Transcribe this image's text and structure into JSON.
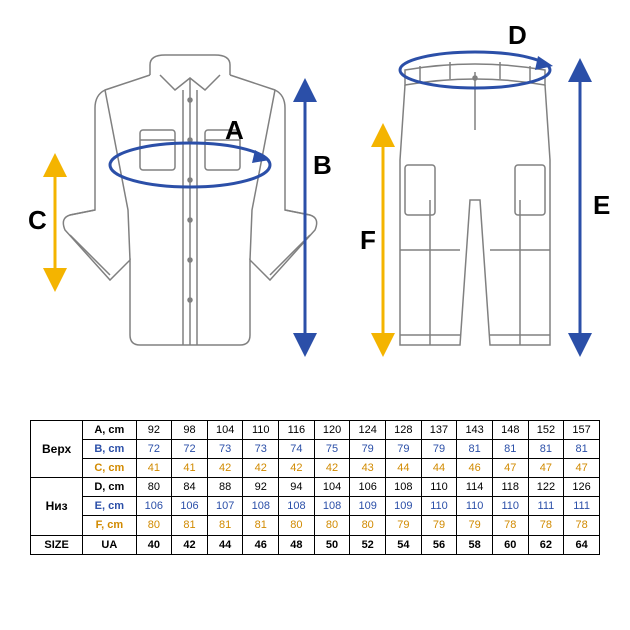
{
  "colors": {
    "garment_stroke": "#808080",
    "arrow_blue": "#2b4fa8",
    "arrow_yellow": "#f4b400",
    "label_text": "#000000",
    "table_border": "#000000",
    "row_a": "#000000",
    "row_b_text": "#2b4fa8",
    "row_c_text": "#d18a00",
    "row_d": "#000000",
    "row_e_text": "#2b4fa8",
    "row_f_text": "#d18a00",
    "size_ua": "#000000"
  },
  "labels": {
    "A": "A",
    "B": "B",
    "C": "C",
    "D": "D",
    "E": "E",
    "F": "F"
  },
  "table": {
    "group_top": "Верх",
    "group_bottom": "Низ",
    "size_label": "SIZE",
    "ua_label": "UA",
    "rows": {
      "A": {
        "label": "A, cm",
        "values": [
          92,
          98,
          104,
          110,
          116,
          120,
          124,
          128,
          137,
          143,
          148,
          152,
          157
        ]
      },
      "B": {
        "label": "B, cm",
        "values": [
          72,
          72,
          73,
          73,
          74,
          75,
          79,
          79,
          79,
          81,
          81,
          81,
          81
        ]
      },
      "C": {
        "label": "C, cm",
        "values": [
          41,
          41,
          42,
          42,
          42,
          42,
          43,
          44,
          44,
          46,
          47,
          47,
          47
        ]
      },
      "D": {
        "label": "D, cm",
        "values": [
          80,
          84,
          88,
          92,
          94,
          104,
          106,
          108,
          110,
          114,
          118,
          122,
          126
        ]
      },
      "E": {
        "label": "E, cm",
        "values": [
          106,
          106,
          107,
          108,
          108,
          108,
          109,
          109,
          110,
          110,
          110,
          111,
          111
        ]
      },
      "F": {
        "label": "F, cm",
        "values": [
          80,
          81,
          81,
          81,
          80,
          80,
          80,
          79,
          79,
          79,
          78,
          78,
          78
        ]
      }
    },
    "sizes": [
      40,
      42,
      44,
      46,
      48,
      50,
      52,
      54,
      56,
      58,
      60,
      62,
      64
    ]
  },
  "style": {
    "label_fontsize": 26,
    "table_fontsize": 11,
    "garment_stroke_width": 1.5,
    "arrow_stroke_width": 3
  }
}
